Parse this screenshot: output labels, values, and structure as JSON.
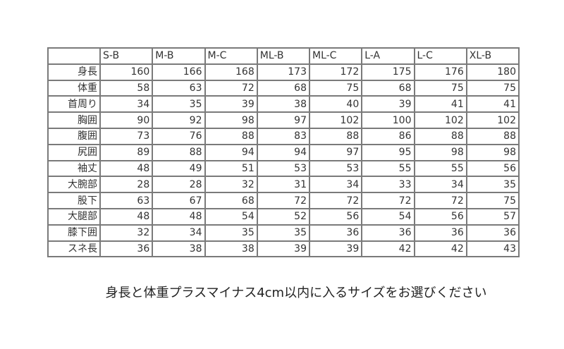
{
  "table": {
    "columns": [
      "S-B",
      "M-B",
      "M-C",
      "ML-B",
      "ML-C",
      "L-A",
      "L-C",
      "XL-B"
    ],
    "rows": [
      {
        "label": "身長",
        "values": [
          "160",
          "166",
          "168",
          "173",
          "172",
          "175",
          "176",
          "180"
        ]
      },
      {
        "label": "体重",
        "values": [
          "58",
          "63",
          "72",
          "68",
          "75",
          "68",
          "75",
          "75"
        ]
      },
      {
        "label": "首周り",
        "values": [
          "34",
          "35",
          "39",
          "38",
          "40",
          "39",
          "41",
          "41"
        ]
      },
      {
        "label": "胸囲",
        "values": [
          "90",
          "92",
          "98",
          "97",
          "102",
          "100",
          "102",
          "102"
        ]
      },
      {
        "label": "腹囲",
        "values": [
          "73",
          "76",
          "88",
          "83",
          "88",
          "86",
          "88",
          "88"
        ]
      },
      {
        "label": "尻囲",
        "values": [
          "89",
          "88",
          "94",
          "94",
          "97",
          "95",
          "98",
          "98"
        ]
      },
      {
        "label": "袖丈",
        "values": [
          "48",
          "49",
          "51",
          "53",
          "53",
          "55",
          "55",
          "56"
        ]
      },
      {
        "label": "大腕部",
        "values": [
          "28",
          "28",
          "32",
          "31",
          "34",
          "33",
          "34",
          "35"
        ]
      },
      {
        "label": "股下",
        "values": [
          "63",
          "67",
          "68",
          "72",
          "72",
          "72",
          "72",
          "75"
        ]
      },
      {
        "label": "大腿部",
        "values": [
          "48",
          "48",
          "54",
          "52",
          "56",
          "54",
          "56",
          "57"
        ]
      },
      {
        "label": "膝下囲",
        "values": [
          "32",
          "34",
          "35",
          "35",
          "36",
          "36",
          "36",
          "36"
        ]
      },
      {
        "label": "スネ長",
        "values": [
          "36",
          "38",
          "38",
          "39",
          "39",
          "42",
          "42",
          "43"
        ]
      }
    ]
  },
  "caption": "身長と体重プラスマイナス4cm以内に入るサイズをお選びください"
}
